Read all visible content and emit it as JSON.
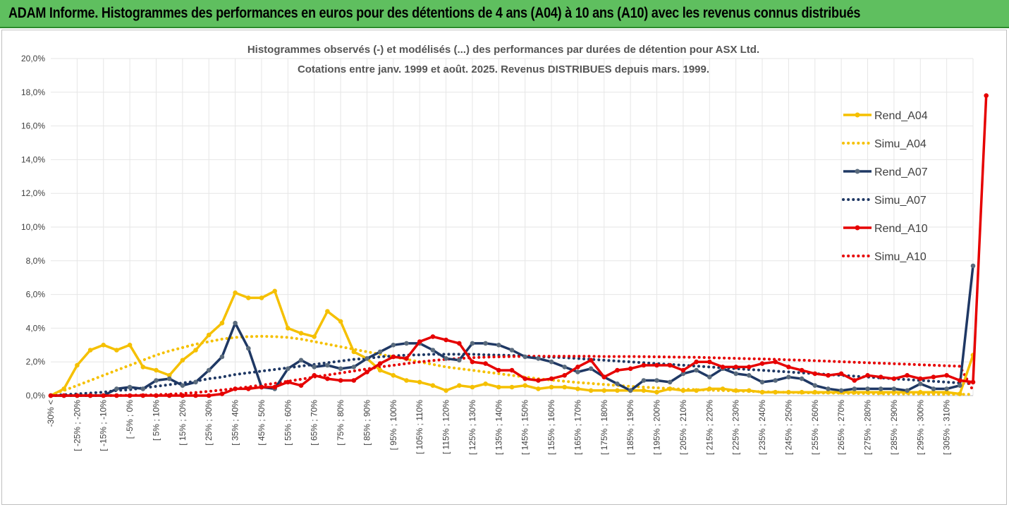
{
  "header": {
    "title": "ADAM Informe. Histogrammes des performances en euros pour des détentions de 4 ans (A04) à 10 ans (A10) avec les revenus connus distribués",
    "background": "#5fbf5f"
  },
  "chart_data": {
    "type": "line",
    "title_lines": [
      "Histogrammes observés (-) et modélisés (...) des performances par durées de détention pour ASX Ltd.",
      "Cotations entre janv. 1999 et août. 2025. Revenus DISTRIBUES depuis mars. 1999."
    ],
    "y_ticks": [
      "0,0%",
      "2,0%",
      "4,0%",
      "6,0%",
      "8,0%",
      "10,0%",
      "12,0%",
      "14,0%",
      "16,0%",
      "18,0%",
      "20,0%"
    ],
    "ylim": [
      0,
      20
    ],
    "grid_vertical": true,
    "legend_position": "right",
    "x_labels": [
      "-30% <",
      "[ -25% ; -20%",
      "[ -15% ; -10%",
      "[ -5% ; 0%",
      "[ 5% ; 10%",
      "[ 15% ; 20%",
      "[ 25% ; 30%",
      "[ 35% ; 40%",
      "[ 45% ; 50%",
      "[ 55% ; 60%",
      "[ 65% ; 70%",
      "[ 75% ; 80%",
      "[ 85% ; 90%",
      "[ 95% ; 100%",
      "[ 105% ; 110%",
      "[ 115% ; 120%",
      "[ 125% ; 130%",
      "[ 135% ; 140%",
      "[ 145% ; 150%",
      "[ 155% ; 160%",
      "[ 165% ; 170%",
      "[ 175% ; 180%",
      "[ 185% ; 190%",
      "[ 195% ; 200%",
      "[ 205% ; 210%",
      "[ 215% ; 220%",
      "[ 225% ; 230%",
      "[ 235% ; 240%",
      "[ 245% ; 250%",
      "[ 255% ; 260%",
      "[ 265% ; 270%",
      "[ 275% ; 280%",
      "[ 285% ; 290%",
      "[ 295% ; 300%",
      "[ 305% ; 310%"
    ],
    "series": [
      {
        "name": "Rend_A04",
        "style": "solid",
        "color": "#f5c000",
        "values": [
          0.0,
          0.4,
          1.8,
          2.7,
          3.0,
          2.7,
          3.0,
          1.7,
          1.5,
          1.2,
          2.1,
          2.7,
          3.6,
          4.3,
          6.1,
          5.8,
          5.8,
          6.2,
          4.0,
          3.7,
          3.5,
          5.0,
          4.4,
          2.6,
          2.2,
          1.5,
          1.2,
          0.9,
          0.8,
          0.6,
          0.3,
          0.6,
          0.5,
          0.7,
          0.5,
          0.5,
          0.6,
          0.4,
          0.5,
          0.5,
          0.4,
          0.3,
          0.3,
          0.3,
          0.3,
          0.3,
          0.2,
          0.4,
          0.3,
          0.3,
          0.4,
          0.4,
          0.3,
          0.3,
          0.2,
          0.2,
          0.2,
          0.2,
          0.2,
          0.2,
          0.2,
          0.2,
          0.2,
          0.2,
          0.2,
          0.2,
          0.2,
          0.2,
          0.2,
          0.1,
          2.4
        ]
      },
      {
        "name": "Simu_A04",
        "style": "dotted",
        "color": "#f5c000",
        "values": [
          0.05,
          0.3,
          0.6,
          0.9,
          1.2,
          1.5,
          1.8,
          2.1,
          2.4,
          2.65,
          2.85,
          3.05,
          3.2,
          3.35,
          3.45,
          3.5,
          3.52,
          3.5,
          3.45,
          3.35,
          3.2,
          3.05,
          2.9,
          2.75,
          2.6,
          2.45,
          2.3,
          2.15,
          2.0,
          1.85,
          1.7,
          1.6,
          1.5,
          1.4,
          1.3,
          1.2,
          1.1,
          1.0,
          0.92,
          0.85,
          0.78,
          0.72,
          0.66,
          0.6,
          0.55,
          0.5,
          0.46,
          0.42,
          0.38,
          0.35,
          0.32,
          0.3,
          0.27,
          0.25,
          0.23,
          0.21,
          0.19,
          0.17,
          0.16,
          0.15,
          0.14,
          0.13,
          0.12,
          0.11,
          0.1,
          0.1,
          0.09,
          0.08,
          0.08,
          0.07,
          0.07
        ]
      },
      {
        "name": "Rend_A07",
        "style": "solid",
        "color": "#1f3864",
        "values": [
          0.0,
          0.0,
          0.0,
          0.0,
          0.0,
          0.4,
          0.5,
          0.4,
          0.9,
          1.0,
          0.6,
          0.8,
          1.5,
          2.3,
          4.3,
          2.8,
          0.5,
          0.4,
          1.6,
          2.1,
          1.7,
          1.8,
          1.6,
          1.7,
          2.2,
          2.6,
          3.0,
          3.1,
          3.1,
          2.7,
          2.2,
          2.1,
          3.1,
          3.1,
          3.0,
          2.7,
          2.3,
          2.2,
          2.0,
          1.7,
          1.4,
          1.6,
          1.1,
          0.7,
          0.3,
          0.9,
          0.9,
          0.8,
          1.3,
          1.5,
          1.1,
          1.6,
          1.3,
          1.2,
          0.8,
          0.9,
          1.1,
          1.0,
          0.6,
          0.4,
          0.3,
          0.4,
          0.4,
          0.4,
          0.4,
          0.3,
          0.7,
          0.4,
          0.4,
          0.6,
          7.7
        ]
      },
      {
        "name": "Simu_A07",
        "style": "dotted",
        "color": "#1f3864",
        "values": [
          0.02,
          0.05,
          0.1,
          0.15,
          0.2,
          0.3,
          0.35,
          0.45,
          0.55,
          0.65,
          0.75,
          0.85,
          1.0,
          1.1,
          1.25,
          1.35,
          1.45,
          1.55,
          1.65,
          1.75,
          1.85,
          1.95,
          2.05,
          2.15,
          2.2,
          2.3,
          2.35,
          2.4,
          2.42,
          2.45,
          2.45,
          2.45,
          2.45,
          2.42,
          2.4,
          2.38,
          2.35,
          2.3,
          2.28,
          2.25,
          2.2,
          2.15,
          2.1,
          2.05,
          2.0,
          1.95,
          1.9,
          1.85,
          1.8,
          1.75,
          1.7,
          1.65,
          1.6,
          1.55,
          1.5,
          1.45,
          1.4,
          1.35,
          1.3,
          1.25,
          1.2,
          1.15,
          1.1,
          1.05,
          1.0,
          0.95,
          0.9,
          0.85,
          0.8,
          0.75,
          0.7
        ]
      },
      {
        "name": "Rend_A10",
        "style": "solid",
        "color": "#e60000",
        "values": [
          0.0,
          0.0,
          0.0,
          0.0,
          0.0,
          0.0,
          0.0,
          0.0,
          0.0,
          0.0,
          0.0,
          0.0,
          0.0,
          0.1,
          0.4,
          0.4,
          0.5,
          0.5,
          0.8,
          0.6,
          1.2,
          1.0,
          0.9,
          0.9,
          1.4,
          1.9,
          2.3,
          2.2,
          3.2,
          3.5,
          3.3,
          3.1,
          2.0,
          1.9,
          1.5,
          1.5,
          1.0,
          0.9,
          1.0,
          1.2,
          1.7,
          2.1,
          1.1,
          1.5,
          1.6,
          1.8,
          1.8,
          1.8,
          1.5,
          2.0,
          2.0,
          1.7,
          1.7,
          1.7,
          1.9,
          2.0,
          1.7,
          1.5,
          1.3,
          1.2,
          1.3,
          0.9,
          1.2,
          1.1,
          1.0,
          1.2,
          1.0,
          1.1,
          1.2,
          0.9,
          0.8,
          17.8
        ]
      },
      {
        "name": "Simu_A10",
        "style": "dotted",
        "color": "#e60000",
        "values": [
          0.0,
          0.0,
          0.0,
          0.0,
          0.0,
          0.01,
          0.02,
          0.03,
          0.05,
          0.08,
          0.12,
          0.18,
          0.25,
          0.33,
          0.42,
          0.52,
          0.62,
          0.73,
          0.85,
          0.97,
          1.1,
          1.22,
          1.34,
          1.46,
          1.58,
          1.7,
          1.8,
          1.9,
          2.0,
          2.08,
          2.15,
          2.2,
          2.25,
          2.28,
          2.3,
          2.32,
          2.33,
          2.33,
          2.33,
          2.33,
          2.33,
          2.33,
          2.32,
          2.32,
          2.32,
          2.31,
          2.3,
          2.29,
          2.28,
          2.27,
          2.25,
          2.23,
          2.21,
          2.19,
          2.17,
          2.15,
          2.12,
          2.1,
          2.07,
          2.04,
          2.01,
          1.98,
          1.95,
          1.92,
          1.89,
          1.86,
          1.83,
          1.8,
          1.77,
          1.74,
          0.3
        ]
      }
    ]
  }
}
